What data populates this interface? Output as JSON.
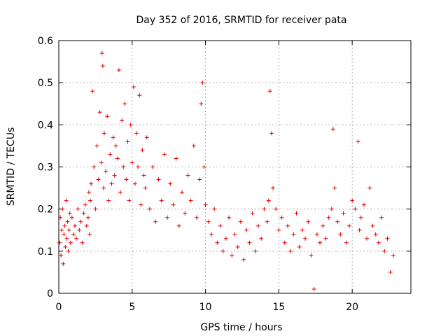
{
  "chart_data": {
    "type": "scatter",
    "title": "Day 352 of 2016, SRMTID for receiver pata",
    "xlabel": "GPS time / hours",
    "ylabel": "SRMTID / TECUs",
    "xlim": [
      0,
      24
    ],
    "ylim": [
      0,
      0.6
    ],
    "xticks": [
      0,
      5,
      10,
      15,
      20
    ],
    "xtick_labels": [
      "0",
      "5",
      "10",
      "15",
      "20"
    ],
    "yticks": [
      0,
      0.1,
      0.2,
      0.3,
      0.4,
      0.5,
      0.6
    ],
    "ytick_labels": [
      "0",
      "0.1",
      "0.2",
      "0.3",
      "0.4",
      "0.5",
      "0.6"
    ],
    "grid": true,
    "marker": "plus",
    "color": "#e00000",
    "series": [
      {
        "name": "SRMTID",
        "x": [
          0.05,
          0.1,
          0.15,
          0.2,
          0.25,
          0.3,
          0.35,
          0.4,
          0.45,
          0.5,
          0.55,
          0.6,
          0.65,
          0.7,
          0.75,
          0.8,
          0.9,
          1.0,
          1.1,
          1.2,
          1.3,
          1.4,
          1.5,
          1.6,
          1.7,
          1.8,
          1.9,
          2.0,
          2.05,
          2.1,
          2.15,
          2.2,
          2.3,
          2.4,
          2.5,
          2.6,
          2.7,
          2.8,
          2.9,
          2.95,
          3.0,
          3.05,
          3.1,
          3.2,
          3.3,
          3.4,
          3.5,
          3.6,
          3.7,
          3.8,
          3.9,
          4.0,
          4.1,
          4.2,
          4.3,
          4.4,
          4.5,
          4.6,
          4.7,
          4.8,
          4.9,
          5.0,
          5.1,
          5.2,
          5.3,
          5.4,
          5.5,
          5.6,
          5.7,
          5.8,
          5.9,
          6.0,
          6.2,
          6.4,
          6.6,
          6.8,
          7.0,
          7.2,
          7.4,
          7.6,
          7.8,
          8.0,
          8.2,
          8.4,
          8.6,
          8.8,
          9.0,
          9.2,
          9.4,
          9.6,
          9.7,
          9.8,
          9.9,
          10.0,
          10.2,
          10.4,
          10.6,
          10.8,
          11.0,
          11.2,
          11.4,
          11.6,
          11.8,
          12.0,
          12.2,
          12.4,
          12.6,
          12.8,
          13.0,
          13.2,
          13.4,
          13.6,
          13.8,
          14.0,
          14.2,
          14.3,
          14.4,
          14.5,
          14.6,
          14.8,
          15.0,
          15.2,
          15.4,
          15.6,
          15.8,
          16.0,
          16.2,
          16.4,
          16.6,
          16.8,
          17.0,
          17.2,
          17.4,
          17.6,
          17.8,
          18.0,
          18.2,
          18.4,
          18.6,
          18.7,
          18.8,
          19.0,
          19.2,
          19.4,
          19.6,
          19.8,
          20.0,
          20.2,
          20.4,
          20.5,
          20.6,
          20.8,
          21.0,
          21.2,
          21.4,
          21.6,
          21.8,
          22.0,
          22.2,
          22.4,
          22.6,
          22.8
        ],
        "y": [
          0.12,
          0.18,
          0.09,
          0.15,
          0.2,
          0.07,
          0.14,
          0.16,
          0.11,
          0.22,
          0.13,
          0.17,
          0.1,
          0.15,
          0.19,
          0.12,
          0.18,
          0.14,
          0.16,
          0.13,
          0.2,
          0.15,
          0.17,
          0.12,
          0.19,
          0.21,
          0.16,
          0.18,
          0.24,
          0.14,
          0.22,
          0.26,
          0.48,
          0.3,
          0.2,
          0.35,
          0.27,
          0.43,
          0.31,
          0.57,
          0.54,
          0.25,
          0.38,
          0.29,
          0.42,
          0.22,
          0.33,
          0.26,
          0.37,
          0.28,
          0.35,
          0.32,
          0.53,
          0.24,
          0.41,
          0.3,
          0.45,
          0.27,
          0.36,
          0.22,
          0.4,
          0.31,
          0.49,
          0.26,
          0.38,
          0.3,
          0.47,
          0.21,
          0.34,
          0.28,
          0.25,
          0.37,
          0.2,
          0.3,
          0.17,
          0.27,
          0.22,
          0.33,
          0.18,
          0.26,
          0.21,
          0.32,
          0.16,
          0.24,
          0.19,
          0.28,
          0.22,
          0.35,
          0.18,
          0.27,
          0.45,
          0.5,
          0.3,
          0.21,
          0.17,
          0.14,
          0.2,
          0.12,
          0.16,
          0.1,
          0.13,
          0.18,
          0.09,
          0.14,
          0.11,
          0.17,
          0.08,
          0.15,
          0.12,
          0.19,
          0.1,
          0.16,
          0.13,
          0.2,
          0.17,
          0.22,
          0.48,
          0.38,
          0.25,
          0.2,
          0.15,
          0.18,
          0.12,
          0.16,
          0.1,
          0.14,
          0.19,
          0.11,
          0.15,
          0.13,
          0.17,
          0.09,
          0.01,
          0.14,
          0.12,
          0.16,
          0.13,
          0.18,
          0.2,
          0.39,
          0.25,
          0.17,
          0.14,
          0.19,
          0.12,
          0.16,
          0.22,
          0.2,
          0.36,
          0.15,
          0.18,
          0.21,
          0.13,
          0.25,
          0.16,
          0.14,
          0.12,
          0.18,
          0.1,
          0.13,
          0.05,
          0.09
        ]
      }
    ]
  }
}
